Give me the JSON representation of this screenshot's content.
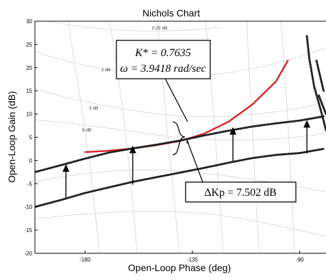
{
  "chart_data": {
    "type": "line",
    "title": "Nichols Chart",
    "xlabel": "Open-Loop Phase (deg)",
    "ylabel": "Open-Loop Gain (dB)",
    "xlim": [
      -201,
      -79
    ],
    "ylim": [
      -20,
      30
    ],
    "x_ticks": [
      -180,
      -135,
      -90
    ],
    "y_ticks": [
      -20,
      -15,
      -10,
      -5,
      0,
      5,
      10,
      15,
      20,
      25,
      30
    ],
    "grid_contour_labels": [
      "0.25 dB",
      "1 dB",
      "3 dB",
      "6 dB"
    ],
    "colors": {
      "compensated": "#d62020",
      "locus": "#222222",
      "grid": "#cfcfcf",
      "axes": "#000000",
      "annotation_box": "#000000"
    },
    "series": [
      {
        "style": "solid-red",
        "points": [
          [
            -180,
            1.8
          ],
          [
            -170,
            2.1
          ],
          [
            -160,
            2.6
          ],
          [
            -150,
            3.3
          ],
          [
            -140,
            4.2
          ],
          [
            -130,
            5.8
          ],
          [
            -120,
            8.3
          ],
          [
            -110,
            12.0
          ],
          [
            -100,
            17.0
          ],
          [
            -95,
            21.5
          ]
        ]
      },
      {
        "style": "dashed-black",
        "points": [
          [
            -201,
            -2.5
          ],
          [
            -190,
            -1.0
          ],
          [
            -180,
            0.4
          ],
          [
            -170,
            1.7
          ],
          [
            -160,
            2.6
          ],
          [
            -150,
            3.4
          ],
          [
            -140,
            4.3
          ],
          [
            -130,
            5.4
          ],
          [
            -120,
            6.4
          ],
          [
            -110,
            7.3
          ],
          [
            -100,
            8.0
          ],
          [
            -90,
            8.6
          ],
          [
            -80,
            9.5
          ]
        ]
      },
      {
        "style": "dashed-black",
        "points": [
          [
            -201,
            -10.0
          ],
          [
            -190,
            -8.5
          ],
          [
            -180,
            -7.0
          ],
          [
            -170,
            -5.8
          ],
          [
            -160,
            -4.6
          ],
          [
            -150,
            -3.6
          ],
          [
            -140,
            -2.6
          ],
          [
            -130,
            -1.6
          ],
          [
            -120,
            -0.5
          ],
          [
            -110,
            0.5
          ],
          [
            -100,
            1.2
          ],
          [
            -90,
            1.6
          ],
          [
            -80,
            2.5
          ]
        ]
      },
      {
        "style": "dashed-black",
        "points": [
          [
            -87,
            26.8
          ],
          [
            -86,
            22.0
          ],
          [
            -84,
            16.0
          ],
          [
            -81,
            10.5
          ],
          [
            -79,
            6.5
          ]
        ]
      },
      {
        "style": "dashed-black",
        "points": [
          [
            -83,
            21.5
          ],
          [
            -80,
            15.0
          ]
        ]
      },
      {
        "style": "dashed-black",
        "points": [
          [
            -82,
            14.0
          ],
          [
            -79,
            10.0
          ]
        ]
      }
    ],
    "arrows": [
      {
        "x": -188,
        "from": -8.0,
        "to": -0.8
      },
      {
        "x": -160,
        "from": -5.2,
        "to": 3.2
      },
      {
        "x": -118,
        "from": -0.2,
        "to": 7.2
      },
      {
        "x": -87,
        "from": 1.5,
        "to": 8.7
      }
    ],
    "operating_point": {
      "x": -137,
      "y": 3.9
    },
    "annotations": {
      "box1_line1": "K* = 0.7635",
      "box1_line2": "ω = 3.9418 rad/sec",
      "box2": "ΔKp = 7.502 dB"
    }
  }
}
